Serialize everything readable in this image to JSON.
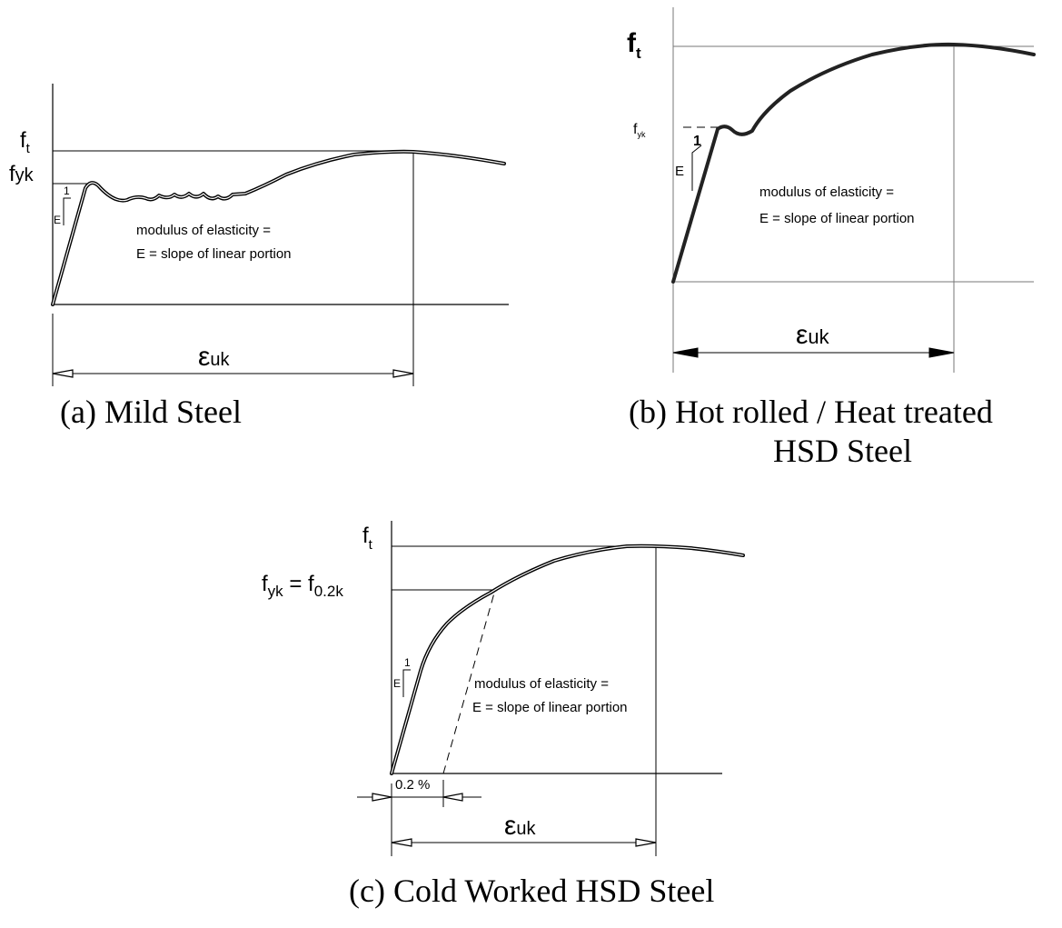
{
  "panels": [
    {
      "id": "a",
      "caption": "(a)  Mild Steel",
      "labels": {
        "ft": "f",
        "ft_sub": "t",
        "fyk": "f",
        "fyk_sub": "yk",
        "slope_one": "1",
        "slope_e": "E",
        "strain": "ε",
        "strain_sub": "uk"
      },
      "annotation": [
        "modulus of elasticity =",
        "E = slope of linear portion"
      ]
    },
    {
      "id": "b",
      "caption": [
        "(b) Hot rolled / Heat treated",
        "HSD Steel"
      ],
      "labels": {
        "ft": "f",
        "ft_sub": "t",
        "fyk": "f",
        "fyk_sub": "yk",
        "slope_one": "1",
        "slope_e": "E",
        "strain": "ε",
        "strain_sub": "uk"
      },
      "annotation": [
        "modulus of elasticity =",
        "E = slope of linear portion"
      ]
    },
    {
      "id": "c",
      "caption": "(c)  Cold Worked HSD Steel",
      "labels": {
        "ft": "f",
        "ft_sub": "t",
        "fyk": "f",
        "fyk_sub": "yk",
        "fyk_eq": " = f",
        "f02_sub": "0.2k",
        "slope_one": "1",
        "slope_e": "E",
        "strain": "ε",
        "strain_sub": "uk",
        "offset": "0.2 %"
      },
      "annotation": [
        "modulus of elasticity =",
        "E = slope of linear portion"
      ]
    }
  ]
}
